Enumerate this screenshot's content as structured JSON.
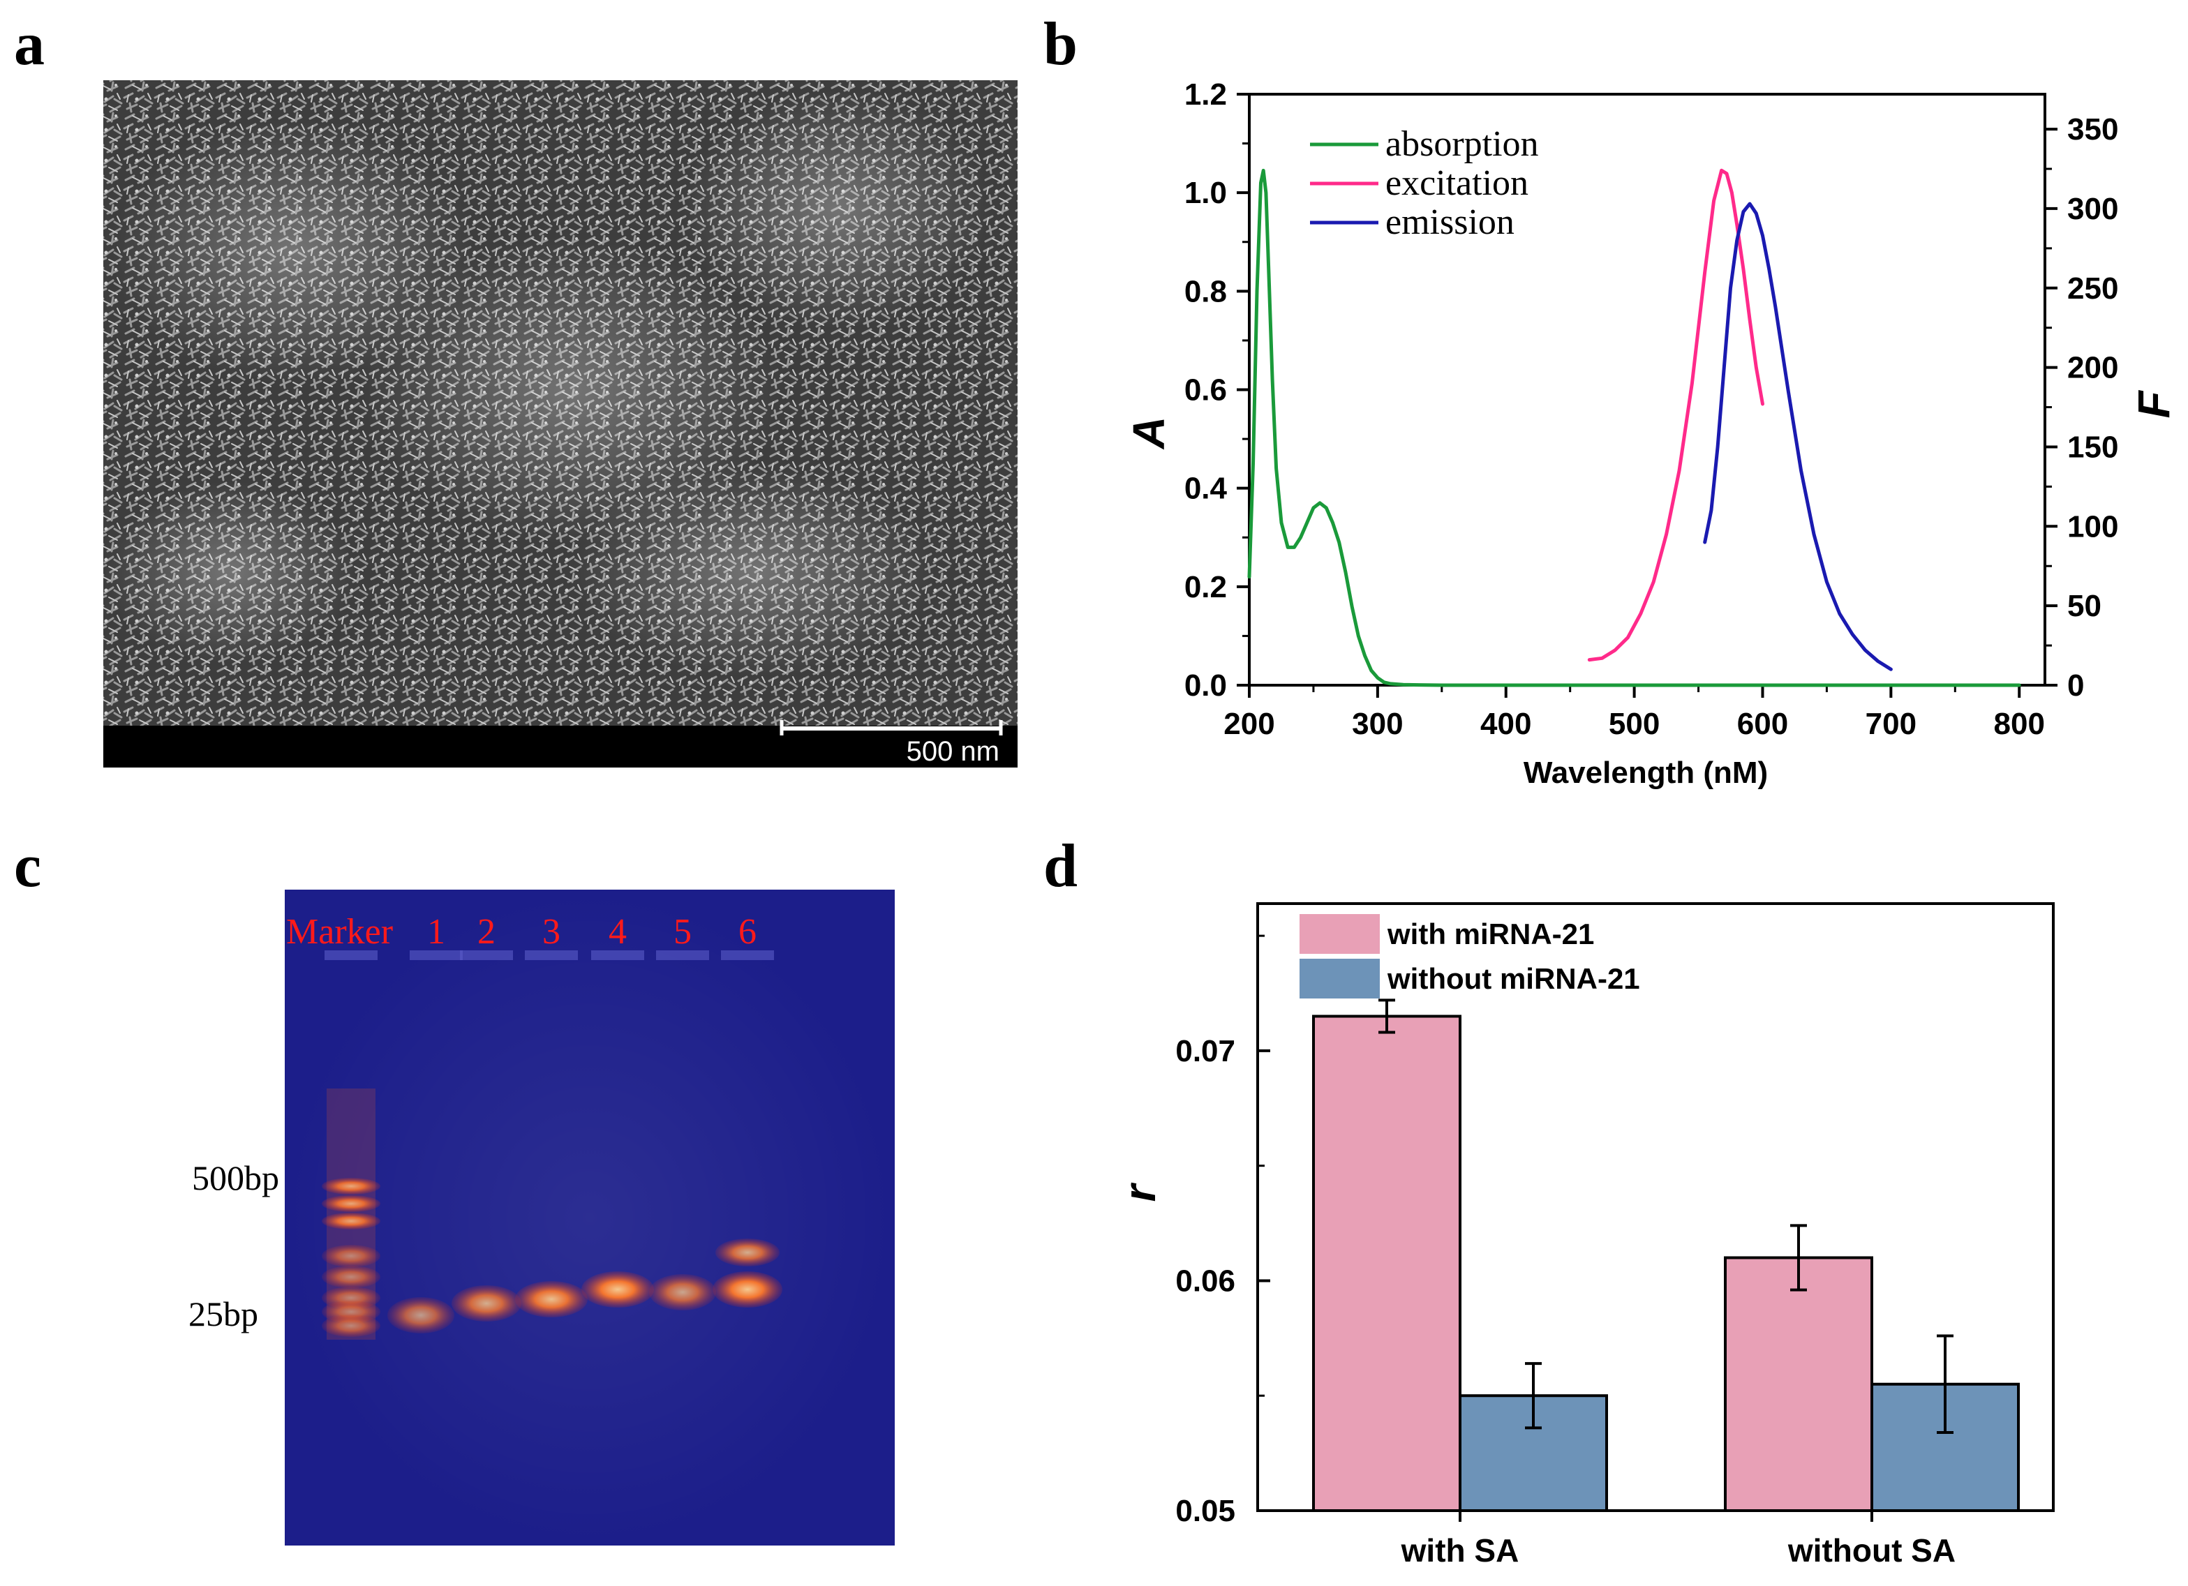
{
  "panels": {
    "a": {
      "label": "a",
      "scale_bar_label": "500 nm"
    },
    "b": {
      "label": "b"
    },
    "c": {
      "label": "c",
      "lane_labels": [
        "Marker",
        "1",
        "2",
        "3",
        "4",
        "5",
        "6"
      ],
      "size_labels": [
        "500bp",
        "25bp"
      ],
      "lane_label_color": "#ff1a1a",
      "gel_color": "#1c1e8a"
    },
    "d": {
      "label": "d"
    }
  },
  "chart_data": [
    {
      "panel": "b",
      "type": "line",
      "title": "",
      "xlabel": "Wavelength (nM)",
      "ylabel_left": "A",
      "ylabel_right": "F",
      "xlim": [
        200,
        820
      ],
      "ylim_left": [
        0.0,
        1.2
      ],
      "ylim_right": [
        0,
        372
      ],
      "x_ticks": [
        200,
        300,
        400,
        500,
        600,
        700,
        800
      ],
      "y_ticks_left": [
        "0.0",
        "0.2",
        "0.4",
        "0.6",
        "0.8",
        "1.0",
        "1.2"
      ],
      "y_ticks_right": [
        "0",
        "50",
        "100",
        "150",
        "200",
        "250",
        "300",
        "350"
      ],
      "legend_position": "top-left",
      "series": [
        {
          "name": "absorption",
          "color": "#1a9a3a",
          "axis": "left",
          "x": [
            200,
            203,
            206,
            209,
            211,
            213,
            215,
            218,
            221,
            225,
            230,
            235,
            240,
            245,
            250,
            255,
            260,
            265,
            270,
            275,
            280,
            285,
            290,
            295,
            300,
            305,
            310,
            320,
            350,
            400,
            500,
            600,
            700,
            800
          ],
          "y": [
            0.22,
            0.45,
            0.8,
            1.02,
            1.045,
            1.0,
            0.85,
            0.62,
            0.44,
            0.33,
            0.28,
            0.28,
            0.3,
            0.33,
            0.36,
            0.37,
            0.36,
            0.33,
            0.29,
            0.23,
            0.16,
            0.1,
            0.06,
            0.03,
            0.015,
            0.006,
            0.003,
            0.001,
            0.0,
            0.0,
            0.0,
            0.0,
            0.0,
            0.0
          ]
        },
        {
          "name": "excitation",
          "color": "#ff2a8a",
          "axis": "right",
          "x": [
            465,
            475,
            485,
            495,
            505,
            515,
            525,
            535,
            545,
            555,
            562,
            568,
            572,
            576,
            580,
            585,
            590,
            595,
            600
          ],
          "y": [
            16,
            17,
            22,
            30,
            45,
            65,
            95,
            135,
            190,
            260,
            305,
            324,
            322,
            310,
            290,
            262,
            230,
            200,
            177
          ]
        },
        {
          "name": "emission",
          "color": "#1a1ab0",
          "axis": "right",
          "x": [
            555,
            560,
            565,
            570,
            575,
            580,
            585,
            590,
            595,
            600,
            605,
            610,
            620,
            630,
            640,
            650,
            660,
            670,
            680,
            690,
            700
          ],
          "y": [
            90,
            110,
            150,
            200,
            250,
            280,
            298,
            303,
            297,
            283,
            262,
            238,
            185,
            135,
            95,
            65,
            45,
            32,
            22,
            15,
            10
          ]
        }
      ]
    },
    {
      "panel": "d",
      "type": "bar",
      "title": "",
      "xlabel": "",
      "ylabel": "r",
      "ylim": [
        0.05,
        0.0764
      ],
      "y_ticks": [
        "0.05",
        "0.06",
        "0.07"
      ],
      "categories": [
        "with SA",
        "without SA"
      ],
      "legend_position": "top-left",
      "series": [
        {
          "name": "with miRNA-21",
          "color": "#e8a0b6",
          "values": [
            0.0715,
            0.061
          ],
          "errors": [
            0.0007,
            0.0014
          ]
        },
        {
          "name": "without miRNA-21",
          "color": "#6d93b8",
          "values": [
            0.055,
            0.0555
          ],
          "errors": [
            0.0014,
            0.0021
          ]
        }
      ]
    }
  ]
}
